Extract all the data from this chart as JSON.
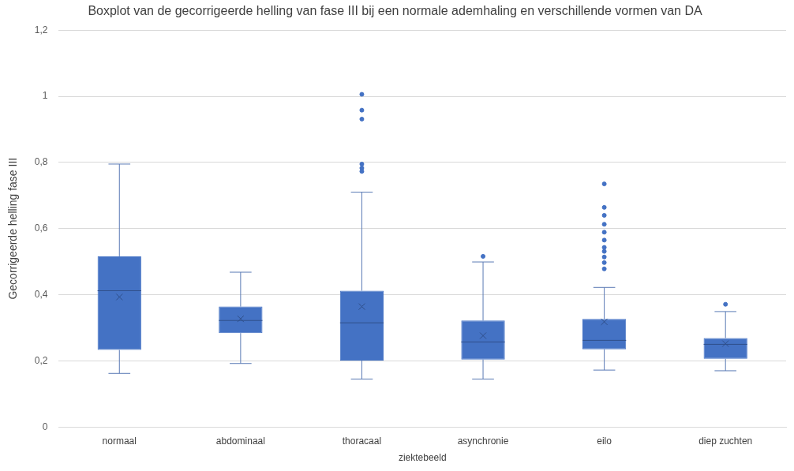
{
  "chart_data": {
    "type": "box",
    "title": "Boxplot van de gecorrigeerde helling van fase III bij een normale ademhaling en verschillende vormen van DA",
    "xlabel": "ziektebeeld",
    "ylabel": "Gecorrigeerde helling fase III",
    "categories": [
      "normaal",
      "abdominaal",
      "thoracaal",
      "asynchronie",
      "eilo",
      "diep zuchten"
    ],
    "color": "#4472c4",
    "boxes": [
      {
        "low": 0.162,
        "q1": 0.233,
        "median": 0.412,
        "q3": 0.516,
        "high": 0.795,
        "mean": 0.393
      },
      {
        "low": 0.192,
        "q1": 0.284,
        "median": 0.322,
        "q3": 0.364,
        "high": 0.468,
        "mean": 0.327
      },
      {
        "low": 0.145,
        "q1": 0.201,
        "median": 0.315,
        "q3": 0.412,
        "high": 0.71,
        "mean": 0.364,
        "outliers": [
          1.006,
          0.958,
          0.931,
          0.795,
          0.783,
          0.773
        ]
      },
      {
        "low": 0.145,
        "q1": 0.204,
        "median": 0.257,
        "q3": 0.322,
        "high": 0.499,
        "mean": 0.276,
        "outliers": [
          0.516
        ]
      },
      {
        "low": 0.172,
        "q1": 0.235,
        "median": 0.262,
        "q3": 0.327,
        "high": 0.422,
        "mean": 0.318,
        "outliers": [
          0.735,
          0.664,
          0.64,
          0.613,
          0.589,
          0.565,
          0.543,
          0.531,
          0.514,
          0.497,
          0.478
        ]
      },
      {
        "low": 0.17,
        "q1": 0.206,
        "median": 0.25,
        "q3": 0.269,
        "high": 0.349,
        "mean": 0.252,
        "outliers": [
          0.371
        ]
      }
    ],
    "ylim": [
      0,
      1.2
    ],
    "yticks": [
      0,
      {
        "value": 0.2,
        "label": "0,2"
      },
      {
        "value": 0.4,
        "label": "0,4"
      },
      {
        "value": 0.6,
        "label": "0,6"
      },
      {
        "value": 0.8,
        "label": "0,8"
      },
      1,
      {
        "value": 1.2,
        "label": "1,2"
      }
    ],
    "grid": "y",
    "legend": false
  }
}
